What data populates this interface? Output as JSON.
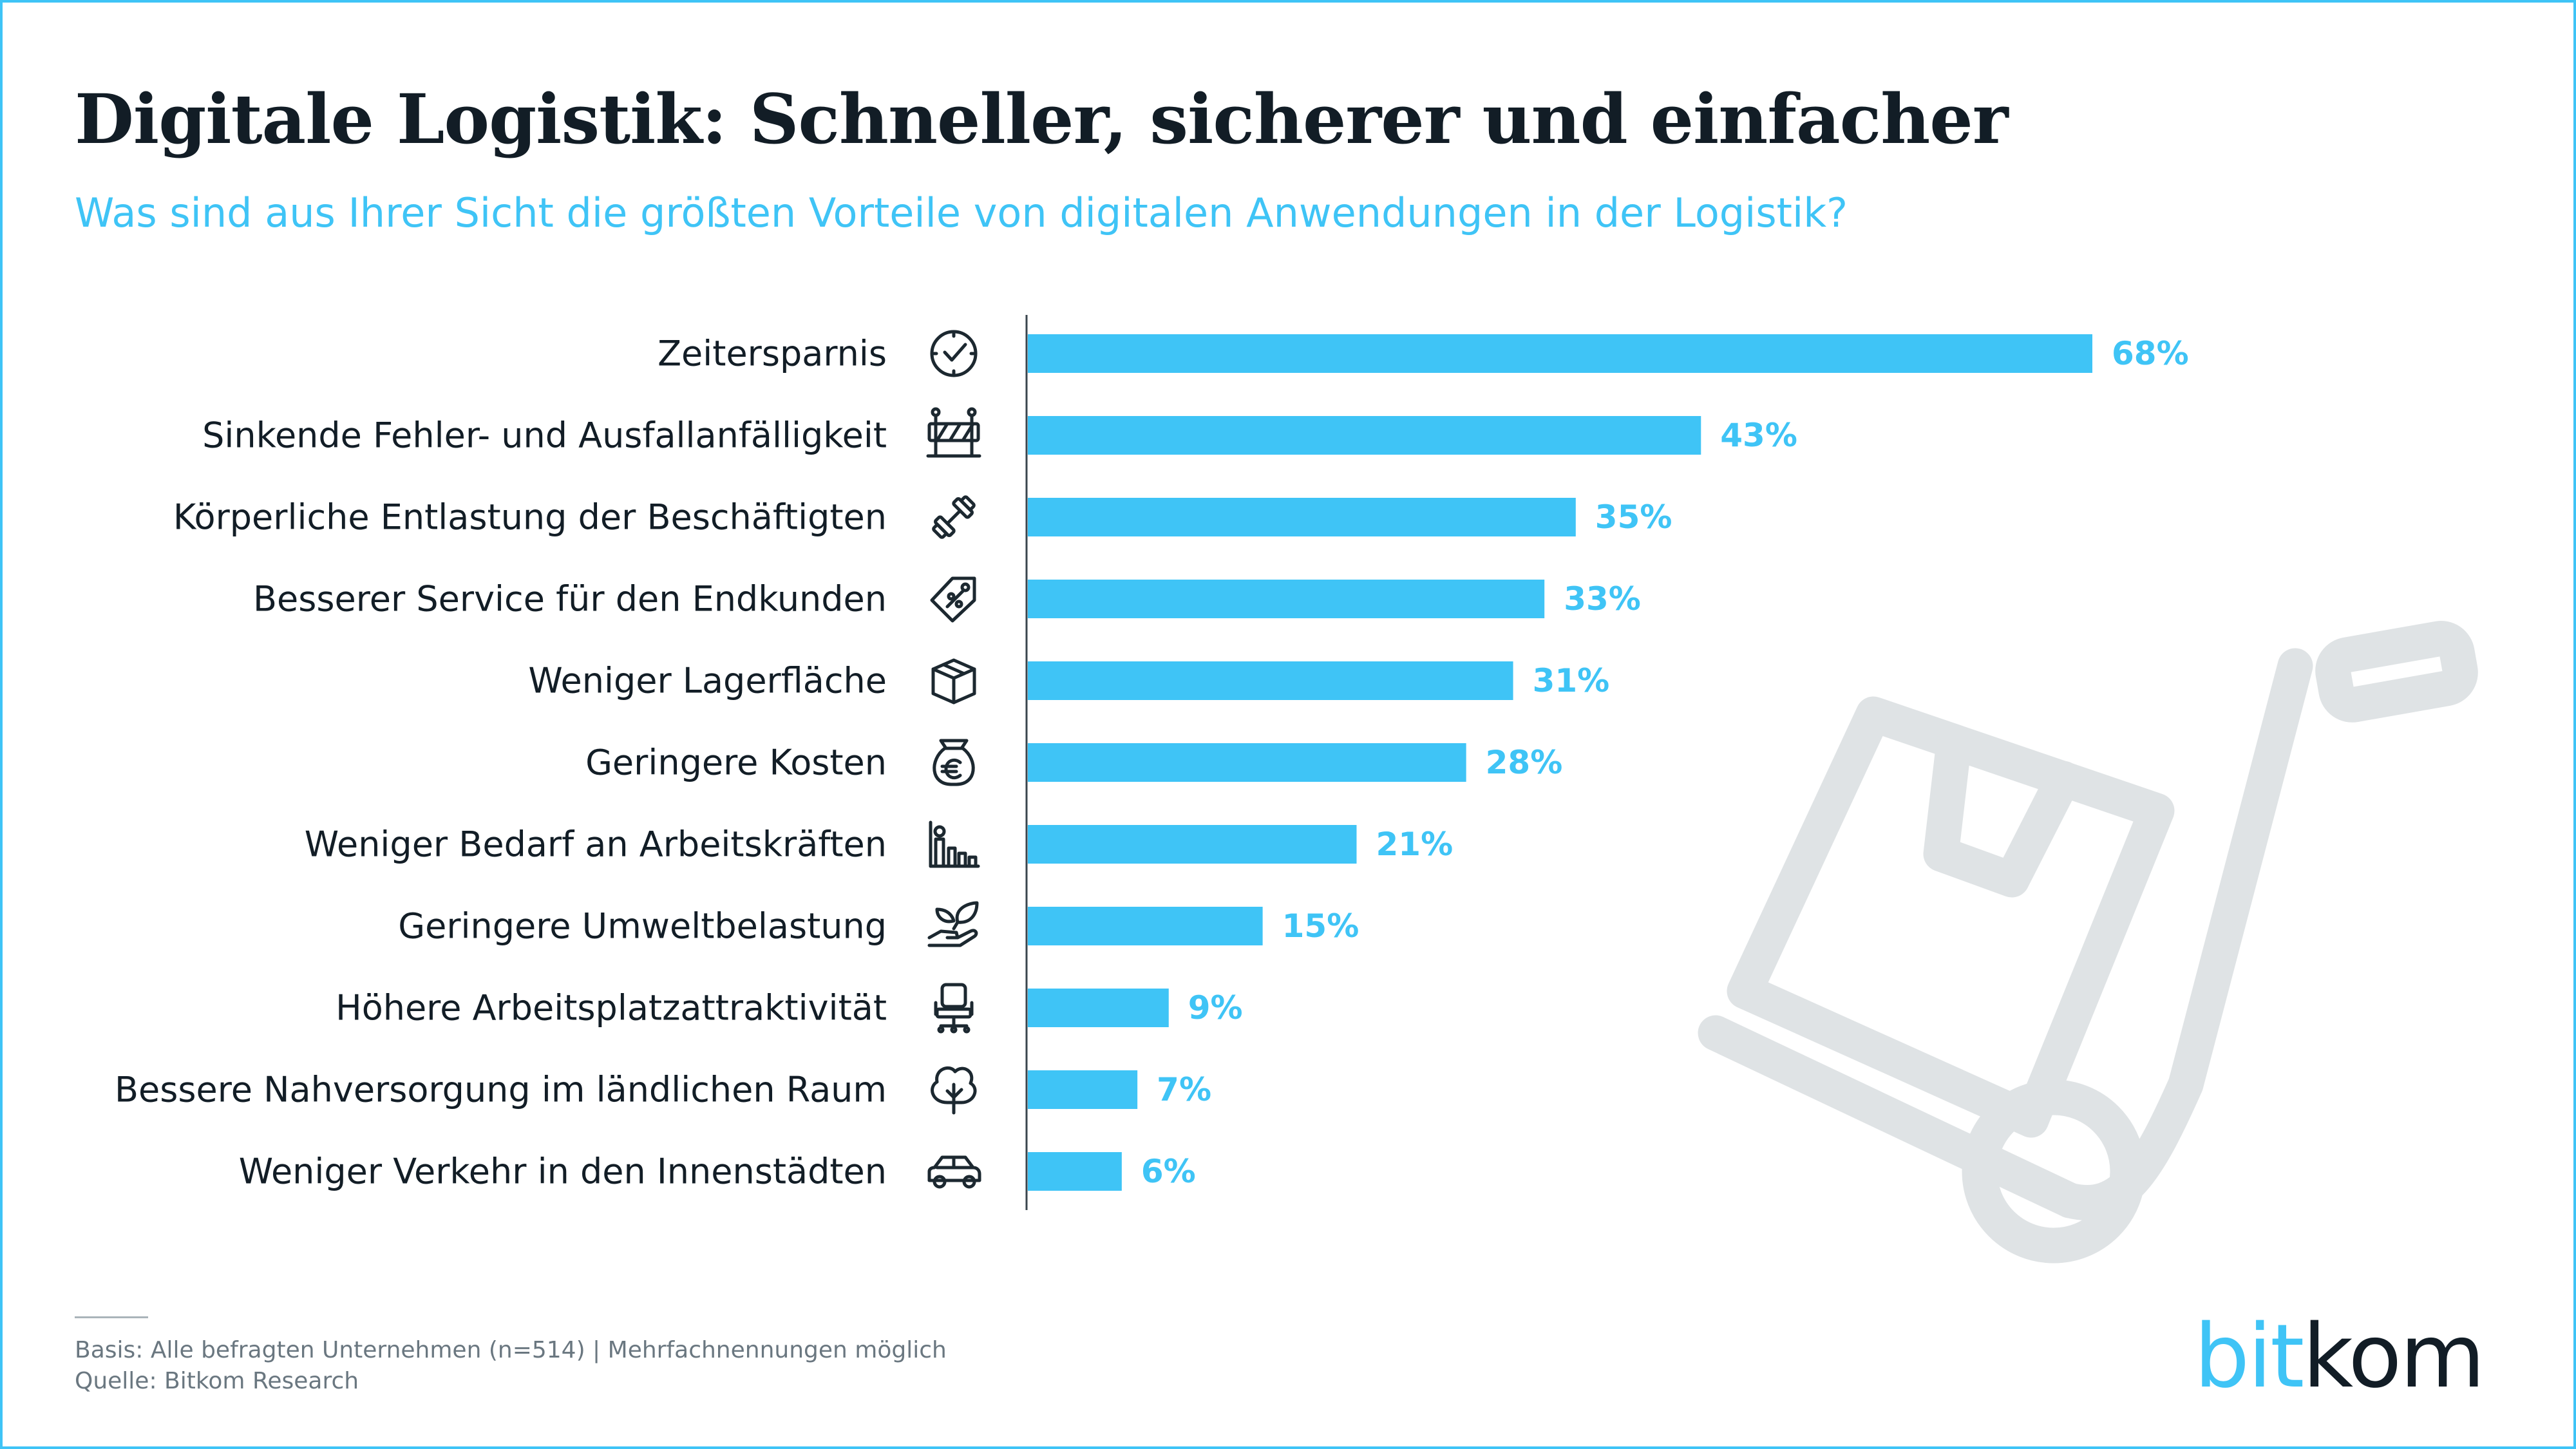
{
  "title": "Digitale Logistik: Schneller, sicherer und einfacher",
  "subtitle": "Was sind aus Ihrer Sicht die größten Vorteile von digitalen Anwendungen in der Logistik?",
  "colors": {
    "accent": "#3fc4f6",
    "text": "#121d26",
    "watermark": "#dfe3e5",
    "footnote": "#6a7780"
  },
  "chart_data": {
    "type": "bar",
    "orientation": "horizontal",
    "title": "Digitale Logistik: Schneller, sicherer und einfacher",
    "subtitle": "Was sind aus Ihrer Sicht die größten Vorteile von digitalen Anwendungen in der Logistik?",
    "xlabel": "",
    "ylabel": "",
    "xlim": [
      0,
      68
    ],
    "value_suffix": "%",
    "grid": false,
    "categories": [
      "Zeitersparnis",
      "Sinkende Fehler- und Ausfallanfälligkeit",
      "Körperliche Entlastung der Beschäftigten",
      "Besserer Service für den Endkunden",
      "Weniger Lagerfläche",
      "Geringere Kosten",
      "Weniger Bedarf an Arbeitskräften",
      "Geringere Umweltbelastung",
      "Höhere Arbeitsplatzattraktivität",
      "Bessere Nahversorgung im ländlichen Raum",
      "Weniger Verkehr in den Innenstädten"
    ],
    "values": [
      68,
      43,
      35,
      33,
      31,
      28,
      21,
      15,
      9,
      7,
      6
    ],
    "value_labels": [
      "68%",
      "43%",
      "35%",
      "33%",
      "31%",
      "28%",
      "21%",
      "15%",
      "9%",
      "7%",
      "6%"
    ],
    "icons": [
      "clock-icon",
      "barrier-icon",
      "dumbbell-icon",
      "price-tag-icon",
      "box-icon",
      "euro-moneybag-icon",
      "workforce-chart-icon",
      "hand-leaf-icon",
      "office-chair-icon",
      "tree-icon",
      "car-icon"
    ]
  },
  "footer": {
    "basis": "Basis: Alle befragten Unternehmen (n=514) | Mehrfachnennungen möglich",
    "source": "Quelle: Bitkom Research"
  },
  "logo": {
    "part1": "bit",
    "part2": "kom"
  }
}
